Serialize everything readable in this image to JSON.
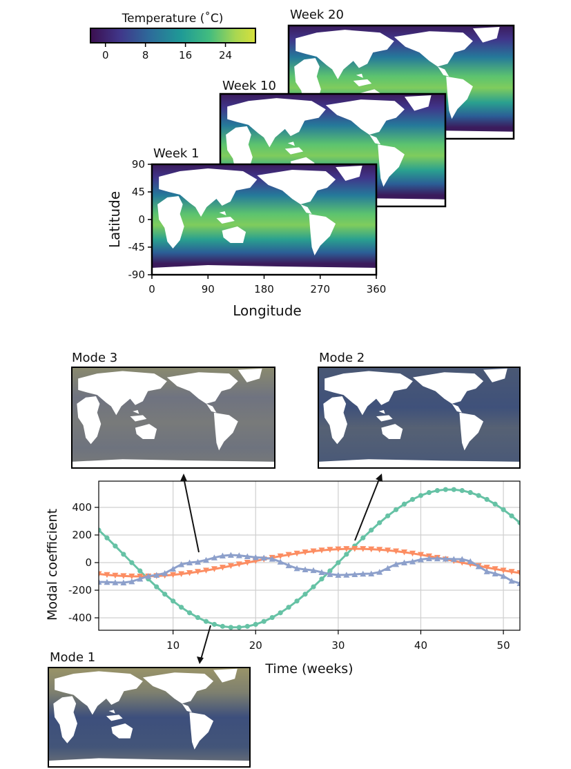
{
  "colorbar": {
    "label": "Temperature (˚C)",
    "ticks": [
      "0",
      "8",
      "16",
      "24"
    ],
    "range": [
      -3,
      30
    ],
    "colormap": [
      "#3b0f4f",
      "#40378a",
      "#2d6b9a",
      "#1f9a96",
      "#42bc7f",
      "#a9d751",
      "#d7e03c"
    ]
  },
  "snapshots": [
    {
      "label": "Week 20"
    },
    {
      "label": "Week 10"
    },
    {
      "label": "Week 1"
    }
  ],
  "snapshot_axes": {
    "xlabel": "Longitude",
    "ylabel": "Latitude",
    "xticks": [
      "0",
      "90",
      "180",
      "270",
      "360"
    ],
    "yticks": [
      "90",
      "45",
      "0",
      "-45",
      "-90"
    ]
  },
  "modes": [
    {
      "label": "Mode 3"
    },
    {
      "label": "Mode 2"
    },
    {
      "label": "Mode 1"
    }
  ],
  "chart_data": {
    "type": "line",
    "xlabel": "Time (weeks)",
    "ylabel": "Modal coefficient",
    "xlim": [
      1,
      52
    ],
    "ylim": [
      -490,
      590
    ],
    "xticks": [
      10,
      20,
      30,
      40,
      50
    ],
    "yticks": [
      400,
      200,
      0,
      -200,
      -400
    ],
    "ytick_labels": [
      "400",
      "200",
      "0",
      "-200",
      "-400"
    ],
    "grid": true,
    "series": [
      {
        "color": "#66c2a5",
        "marker": "circle",
        "amplitude": 500,
        "center_x": 43.5,
        "offset": 30,
        "period": 52
      },
      {
        "color": "#fc8d62",
        "marker": "triangle-down",
        "amplitude": 100,
        "center_x": 32,
        "offset": 0,
        "period": 52
      },
      {
        "color": "#8da0cb",
        "marker": "triangle-up",
        "points": [
          [
            1,
            -140
          ],
          [
            4,
            -145
          ],
          [
            8,
            -90
          ],
          [
            12,
            0
          ],
          [
            17,
            55
          ],
          [
            21,
            35
          ],
          [
            26,
            -50
          ],
          [
            30,
            -90
          ],
          [
            34,
            -80
          ],
          [
            38,
            0
          ],
          [
            41,
            30
          ],
          [
            45,
            25
          ],
          [
            49,
            -80
          ],
          [
            52,
            -150
          ]
        ]
      }
    ]
  }
}
